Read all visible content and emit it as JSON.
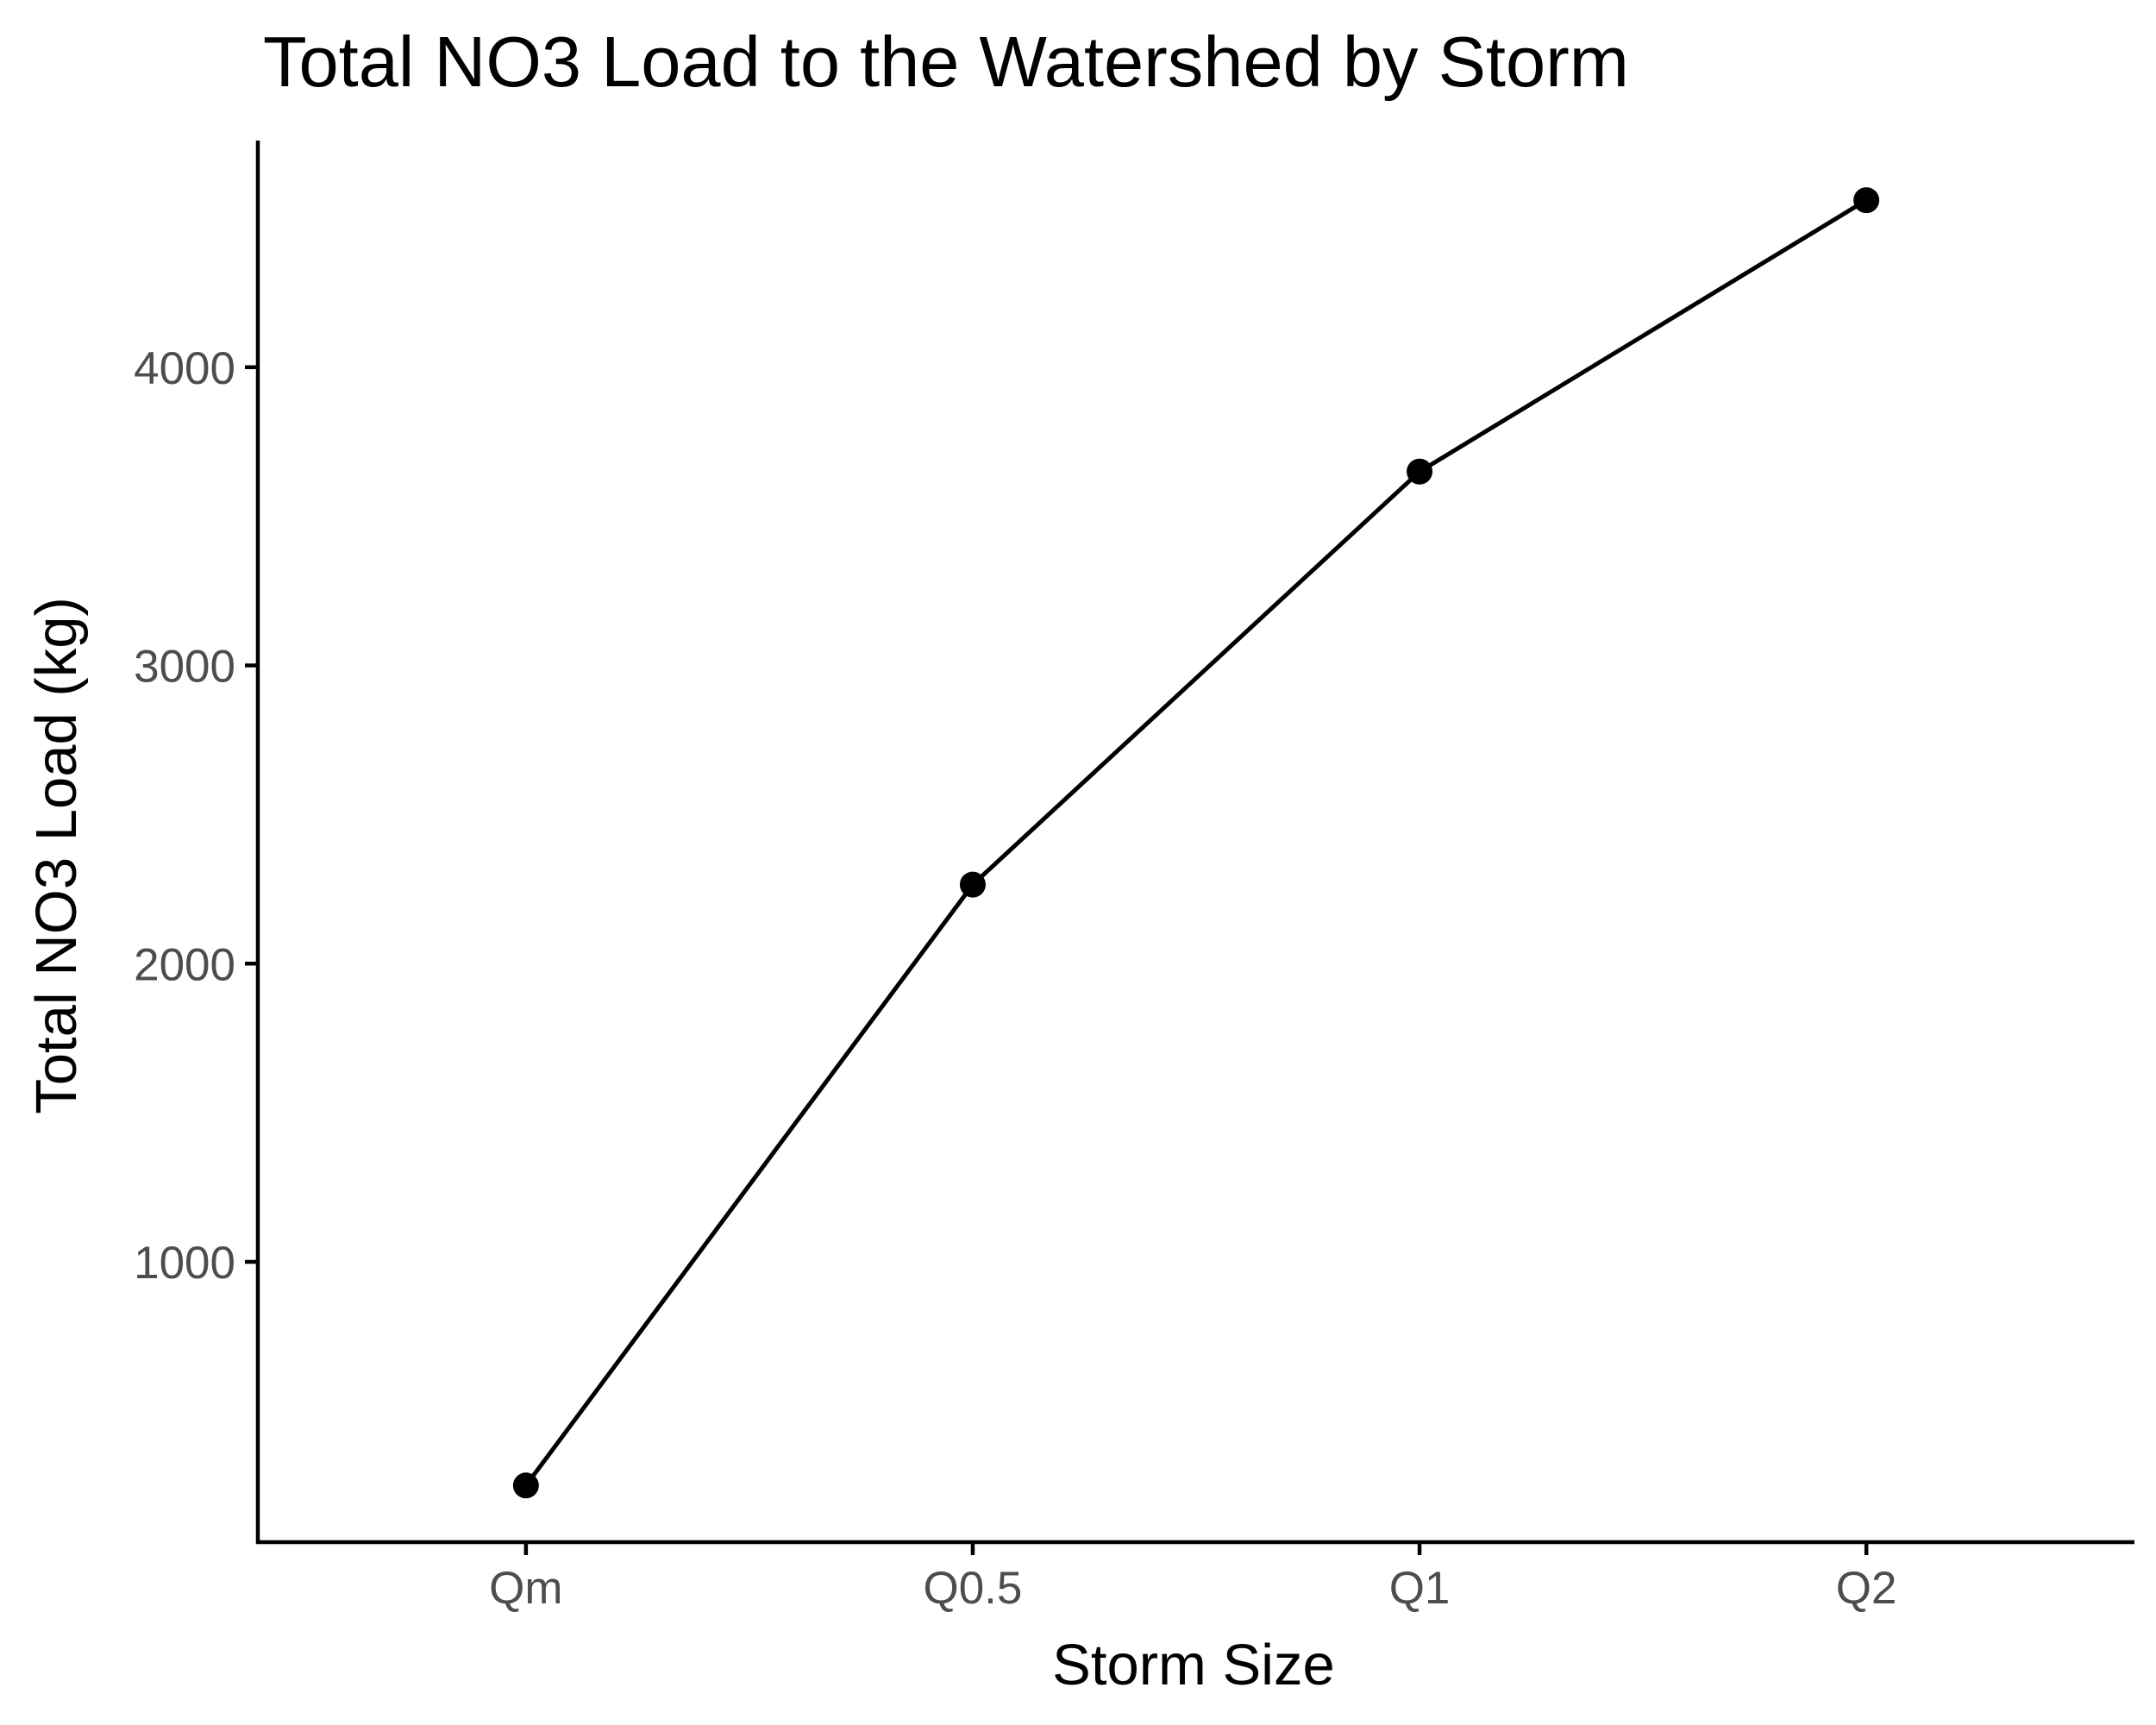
{
  "chart_data": {
    "type": "line",
    "title": "Total NO3 Load to the Watershed by Storm",
    "xlabel": "Storm Size",
    "ylabel": "Total NO3 Load (kg)",
    "categories": [
      "Qm",
      "Q0.5",
      "Q1",
      "Q2"
    ],
    "series": [
      {
        "values": [
          250,
          2265,
          3650,
          4560
        ]
      }
    ],
    "ylim": [
      60,
      4760
    ],
    "y_ticks": [
      "1000",
      "2000",
      "3000",
      "4000"
    ],
    "grid": false,
    "legend": "none",
    "colors": {
      "line": "#000000",
      "point": "#000000",
      "axis": "#000000",
      "tick_text": "#4d4d4d",
      "background": "#ffffff"
    }
  }
}
